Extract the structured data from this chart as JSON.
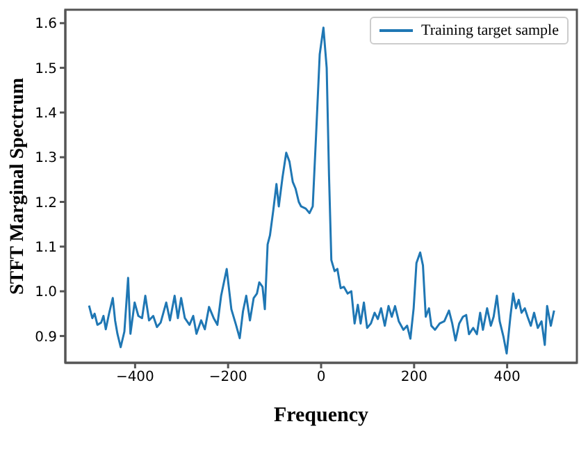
{
  "chart_data": {
    "type": "line",
    "xlabel": "Frequency",
    "ylabel": "STFT Marginal Spectrum",
    "xlim": [
      -550,
      550
    ],
    "xticks": [
      -400,
      -200,
      0,
      200,
      400
    ],
    "ylim": [
      0.84,
      1.63
    ],
    "yticks": [
      0.9,
      {
        "value": 1.0,
        "label": "1.0"
      },
      1.1,
      1.2,
      1.3,
      1.4,
      1.5,
      1.6
    ],
    "grid": false,
    "legend": "top right",
    "marker": "none",
    "line_style": "solid",
    "series": [
      {
        "name": "Training target sample",
        "color": "#1f77b4",
        "x": [
          -499,
          -492,
          -487,
          -481,
          -473,
          -468,
          -463,
          -456,
          -448,
          -443,
          -438,
          -431,
          -423,
          -415,
          -410,
          -401,
          -393,
          -385,
          -378,
          -370,
          -361,
          -353,
          -345,
          -333,
          -325,
          -315,
          -308,
          -301,
          -293,
          -283,
          -275,
          -268,
          -258,
          -250,
          -241,
          -231,
          -223,
          -215,
          -203,
          -193,
          -183,
          -175,
          -168,
          -161,
          -153,
          -145,
          -138,
          -133,
          -126,
          -121,
          -115,
          -110,
          -103,
          -96,
          -91,
          -83,
          -75,
          -68,
          -61,
          -55,
          -48,
          -43,
          -33,
          -25,
          -18,
          -11,
          -3,
          5,
          12,
          17,
          22,
          29,
          35,
          42,
          49,
          57,
          65,
          72,
          79,
          85,
          92,
          99,
          107,
          115,
          122,
          129,
          137,
          145,
          152,
          159,
          167,
          177,
          185,
          192,
          199,
          205,
          213,
          219,
          225,
          232,
          237,
          245,
          255,
          265,
          275,
          282,
          289,
          297,
          305,
          312,
          318,
          327,
          335,
          342,
          348,
          357,
          365,
          371,
          378,
          384,
          392,
          399,
          407,
          413,
          419,
          425,
          431,
          438,
          444,
          451,
          458,
          466,
          474,
          481,
          486,
          494,
          501
        ],
        "values": [
          0.968,
          0.94,
          0.95,
          0.925,
          0.93,
          0.945,
          0.915,
          0.95,
          0.985,
          0.935,
          0.905,
          0.875,
          0.91,
          1.03,
          0.905,
          0.975,
          0.945,
          0.94,
          0.99,
          0.935,
          0.945,
          0.92,
          0.93,
          0.975,
          0.935,
          0.99,
          0.94,
          0.985,
          0.94,
          0.925,
          0.945,
          0.905,
          0.935,
          0.915,
          0.965,
          0.94,
          0.925,
          0.99,
          1.05,
          0.96,
          0.925,
          0.895,
          0.955,
          0.99,
          0.935,
          0.985,
          0.995,
          1.02,
          1.01,
          0.96,
          1.105,
          1.125,
          1.18,
          1.24,
          1.19,
          1.255,
          1.31,
          1.29,
          1.245,
          1.23,
          1.2,
          1.19,
          1.185,
          1.175,
          1.19,
          1.345,
          1.53,
          1.59,
          1.5,
          1.26,
          1.07,
          1.045,
          1.05,
          1.007,
          1.01,
          0.995,
          1.0,
          0.928,
          0.97,
          0.928,
          0.975,
          0.918,
          0.928,
          0.952,
          0.938,
          0.962,
          0.923,
          0.967,
          0.943,
          0.967,
          0.933,
          0.914,
          0.923,
          0.894,
          0.962,
          1.063,
          1.087,
          1.058,
          0.943,
          0.962,
          0.923,
          0.914,
          0.928,
          0.933,
          0.957,
          0.928,
          0.89,
          0.928,
          0.943,
          0.947,
          0.904,
          0.918,
          0.904,
          0.952,
          0.914,
          0.962,
          0.923,
          0.943,
          0.99,
          0.933,
          0.899,
          0.861,
          0.943,
          0.995,
          0.962,
          0.981,
          0.952,
          0.962,
          0.943,
          0.923,
          0.952,
          0.918,
          0.933,
          0.88,
          0.967,
          0.923,
          0.957
        ]
      }
    ]
  }
}
